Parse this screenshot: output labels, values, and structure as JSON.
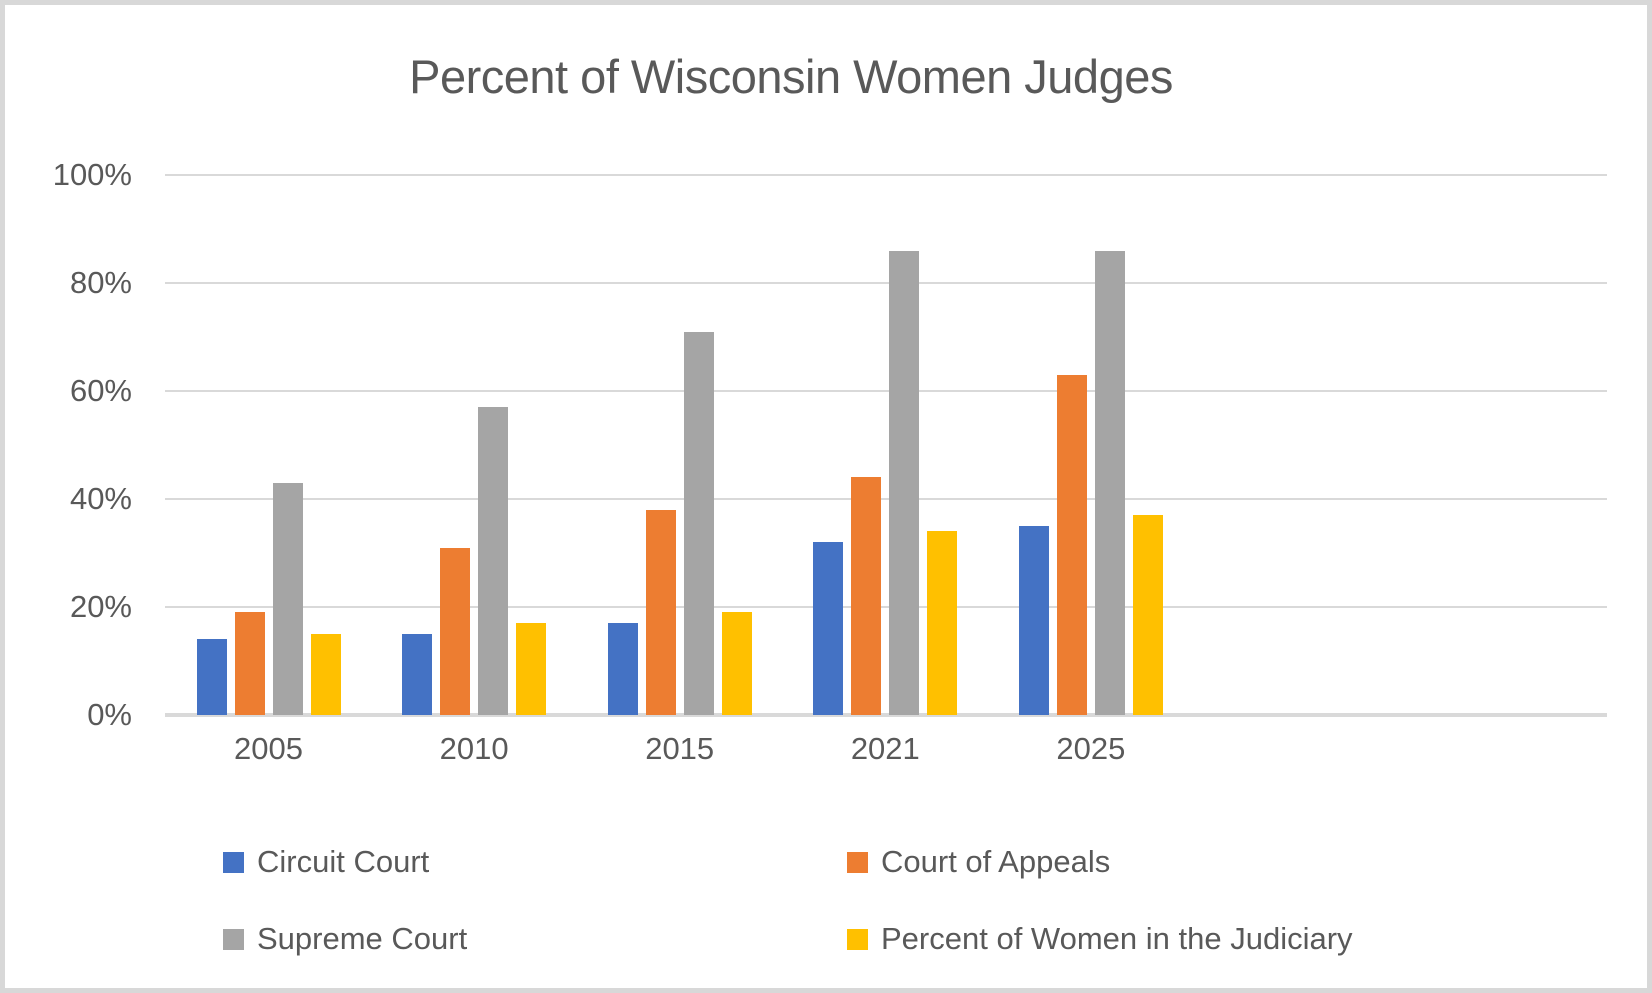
{
  "chart_data": {
    "type": "bar",
    "title": "Percent of Wisconsin Women Judges",
    "xlabel": "",
    "ylabel": "",
    "categories": [
      "2005",
      "2010",
      "2015",
      "2021",
      "2025"
    ],
    "series": [
      {
        "name": "Circuit Court",
        "color": "#4472C4",
        "values": [
          14,
          15,
          17,
          32,
          35
        ]
      },
      {
        "name": "Court of Appeals",
        "color": "#ED7D31",
        "values": [
          19,
          31,
          38,
          44,
          63
        ]
      },
      {
        "name": "Supreme Court",
        "color": "#A5A5A5",
        "values": [
          43,
          57,
          71,
          86,
          86
        ]
      },
      {
        "name": "Percent of Women in the Judiciary",
        "color": "#FFC000",
        "values": [
          15,
          17,
          19,
          34,
          37
        ]
      }
    ],
    "value_unit": "%",
    "ylim": [
      0,
      100
    ],
    "y_ticks": [
      {
        "value": 0,
        "label": "0%"
      },
      {
        "value": 20,
        "label": "20%"
      },
      {
        "value": 40,
        "label": "40%"
      },
      {
        "value": 60,
        "label": "60%"
      },
      {
        "value": 80,
        "label": "80%"
      },
      {
        "value": 100,
        "label": "100%"
      }
    ],
    "grid": true,
    "legend_position": "bottom",
    "legend_columns": 2
  },
  "colors": {
    "text": "#595959",
    "gridline": "#D9D9D9",
    "axis_line": "#D9D9D9",
    "frame_border": "#D8D8D8",
    "background": "#FFFFFF"
  }
}
